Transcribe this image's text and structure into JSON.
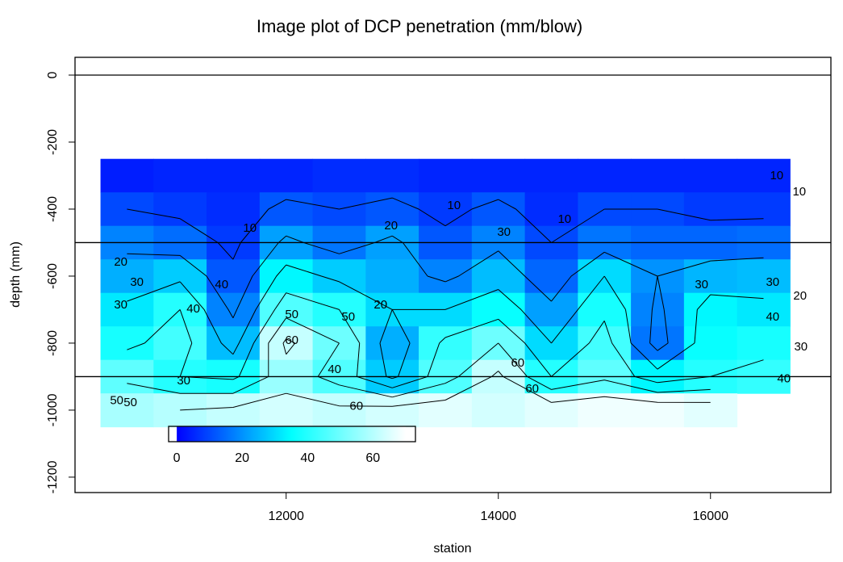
{
  "chart_data": {
    "type": "image-contour",
    "title": "Image plot of DCP penetration (mm/blow)",
    "x_label": "station",
    "y_label": "depth (mm)",
    "xlim": [
      10010,
      17135
    ],
    "ylim": [
      -1246,
      53
    ],
    "xticks": [
      12000,
      14000,
      16000
    ],
    "yticks": [
      -1200,
      -1000,
      -800,
      -600,
      -400,
      -200,
      0
    ],
    "x": [
      10500,
      11000,
      11500,
      12000,
      12500,
      13000,
      13500,
      14000,
      14500,
      15000,
      15500,
      16000,
      16500
    ],
    "y": [
      -300,
      -400,
      -500,
      -600,
      -700,
      -800,
      -900,
      -1000
    ],
    "z": [
      [
        4,
        5,
        5,
        5,
        6,
        6,
        5,
        5,
        5,
        5,
        5,
        5,
        5
      ],
      [
        10,
        8,
        6,
        12,
        10,
        12,
        8,
        12,
        6,
        10,
        10,
        8,
        8
      ],
      [
        18,
        15,
        8,
        22,
        16,
        22,
        12,
        18,
        10,
        16,
        14,
        14,
        15
      ],
      [
        24,
        28,
        12,
        34,
        28,
        24,
        18,
        26,
        14,
        30,
        20,
        25,
        26
      ],
      [
        32,
        40,
        18,
        46,
        40,
        30,
        30,
        36,
        22,
        38,
        18,
        34,
        32
      ],
      [
        38,
        44,
        26,
        62,
        50,
        24,
        42,
        50,
        30,
        44,
        16,
        36,
        38
      ],
      [
        48,
        40,
        38,
        56,
        46,
        28,
        46,
        62,
        40,
        48,
        34,
        40,
        42
      ],
      [
        58,
        60,
        62,
        64,
        62,
        64,
        66,
        64,
        66,
        68,
        68,
        66,
        null
      ]
    ],
    "zlim": [
      0,
      70
    ],
    "colors": [
      "#0000ff",
      "#00ffff",
      "#ffffff"
    ],
    "colorbar_lim": [
      -2.5,
      73
    ],
    "colorbar_ticks": [
      0,
      20,
      40,
      60
    ],
    "contour_levels": [
      10,
      20,
      30,
      40,
      50,
      60
    ],
    "contour_labels": [
      {
        "level": 10,
        "x": 16624,
        "y": -301
      },
      {
        "level": 10,
        "x": 16837,
        "y": -349
      },
      {
        "level": 10,
        "x": 13582,
        "y": -390
      },
      {
        "level": 10,
        "x": 14624,
        "y": -431
      },
      {
        "level": 10,
        "x": 11658,
        "y": -458
      },
      {
        "level": 20,
        "x": 12989,
        "y": -451
      },
      {
        "level": 30,
        "x": 14053,
        "y": -470
      },
      {
        "level": 20,
        "x": 10441,
        "y": -559
      },
      {
        "level": 30,
        "x": 10593,
        "y": -619
      },
      {
        "level": 40,
        "x": 11392,
        "y": -627
      },
      {
        "level": 30,
        "x": 15916,
        "y": -627
      },
      {
        "level": 30,
        "x": 16586,
        "y": -619
      },
      {
        "level": 20,
        "x": 16844,
        "y": -660
      },
      {
        "level": 30,
        "x": 10441,
        "y": -687
      },
      {
        "level": 40,
        "x": 11125,
        "y": -699
      },
      {
        "level": 50,
        "x": 12053,
        "y": -716
      },
      {
        "level": 50,
        "x": 12586,
        "y": -723
      },
      {
        "level": 20,
        "x": 12890,
        "y": -687
      },
      {
        "level": 40,
        "x": 16586,
        "y": -723
      },
      {
        "level": 60,
        "x": 12053,
        "y": -793
      },
      {
        "level": 30,
        "x": 16852,
        "y": -812
      },
      {
        "level": 40,
        "x": 12456,
        "y": -880
      },
      {
        "level": 30,
        "x": 11034,
        "y": -913
      },
      {
        "level": 60,
        "x": 14183,
        "y": -860
      },
      {
        "level": 40,
        "x": 16692,
        "y": -908
      },
      {
        "level": 60,
        "x": 14319,
        "y": -937
      },
      {
        "level": 50,
        "x": 10403,
        "y": -973
      },
      {
        "level": 50,
        "x": 10532,
        "y": -978
      },
      {
        "level": 60,
        "x": 12662,
        "y": -990
      }
    ],
    "hlines": [
      0,
      -500,
      -900
    ]
  }
}
